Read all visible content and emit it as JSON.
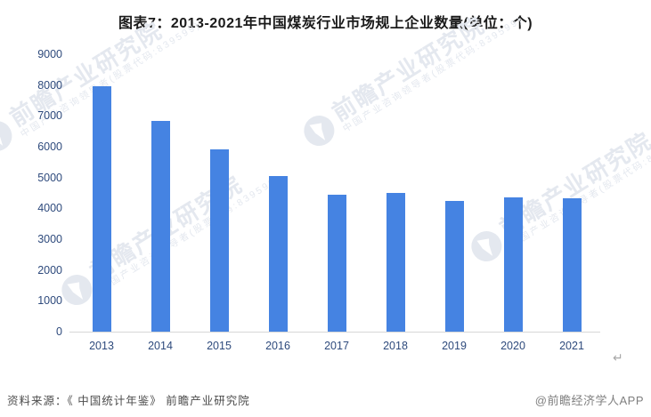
{
  "chart_data": {
    "type": "bar",
    "title": "图表7：2013-2021年中国煤炭行业市场规上企业数量(单位：个)",
    "categories": [
      "2013",
      "2014",
      "2015",
      "2016",
      "2017",
      "2018",
      "2019",
      "2020",
      "2021"
    ],
    "values": [
      7950,
      6850,
      5920,
      5050,
      4440,
      4500,
      4240,
      4350,
      4340
    ],
    "xlabel": "",
    "ylabel": "",
    "ylim": [
      0,
      9000
    ],
    "ytick_interval": 1000,
    "yticks": [
      9000,
      8000,
      7000,
      6000,
      5000,
      4000,
      3000,
      2000,
      1000,
      0
    ],
    "grid": false,
    "legend": "none",
    "bar_color": "#4583E2"
  },
  "watermark": {
    "logo": "qianzhan-logo",
    "text": "前瞻产业研究院",
    "subtext": "中国产业咨询领导者(股票代码:839599)"
  },
  "footer": {
    "source": "资料来源：《 中国统计年鉴》 前瞻产业研究院",
    "credit": "@前瞻经济学人APP",
    "return_mark": "↵"
  },
  "colors": {
    "bar": "#4583E2",
    "axis_label": "#2E4A7C",
    "axis_line": "#D7D7D7",
    "title": "#1A1A1A",
    "source": "#4D4D4D",
    "credit": "#7F7F7F",
    "watermark": "#E4E8EF"
  }
}
